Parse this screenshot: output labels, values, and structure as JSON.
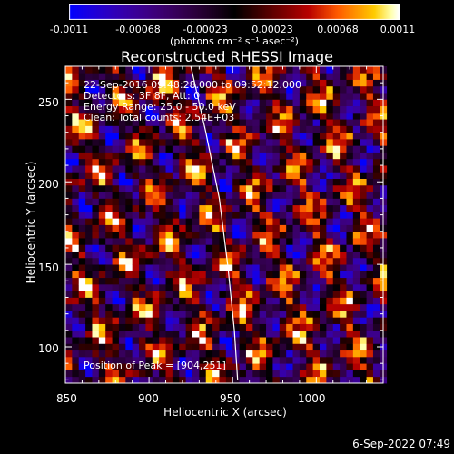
{
  "colorbar": {
    "ticks": [
      "-0.0011",
      "-0.00068",
      "-0.00023",
      "0.00023",
      "0.00068",
      "0.0011"
    ],
    "units": "(photons cm⁻² s⁻¹ asec⁻²)"
  },
  "chart_data": {
    "type": "heatmap",
    "title": "Reconstructed RHESSI Image",
    "xlabel": "Heliocentric X (arcsec)",
    "ylabel": "Heliocentric Y (arcsec)",
    "xlim": [
      850,
      1040
    ],
    "ylim": [
      78,
      270
    ],
    "xticks": [
      "850",
      "900",
      "950",
      "1000"
    ],
    "xtick_values": [
      850,
      900,
      950,
      1000
    ],
    "yticks": [
      "100",
      "150",
      "200",
      "250"
    ],
    "ytick_values": [
      100,
      150,
      200,
      250
    ],
    "value_range": [
      -0.0011,
      0.0011
    ],
    "colormap": "red-temperature",
    "pixel_size_arcsec": 4,
    "limb_curve": {
      "x": [
        925,
        934,
        942,
        947,
        951,
        953
      ],
      "y": [
        270,
        230,
        190,
        150,
        110,
        80
      ]
    },
    "peak": {
      "x": 904,
      "y": 251
    },
    "annotations": {
      "time": "22-Sep-2016 09:48:28.000 to 09:52:12.000",
      "detectors": "Detectors: 3F 8F, Att: 0",
      "energy": "Energy Range: 25.0 - 50.0 keV",
      "clean": "Clean:    Total counts: 2.54E+03",
      "peak_text": "Position of Peak = [904,251]"
    }
  },
  "footer": {
    "timestamp": "6-Sep-2022 07:49"
  }
}
